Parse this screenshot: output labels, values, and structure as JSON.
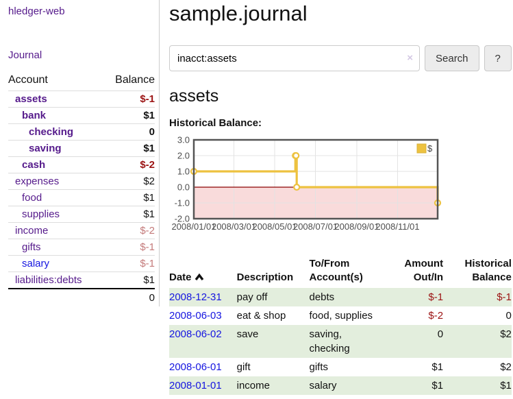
{
  "colors": {
    "link_purple": "#551A8B",
    "link_blue": "#1515e0",
    "negative_strong": "#9b1212",
    "negative_soft": "#c47a7a",
    "row_stripe_green": "#e3eedd",
    "series_gold": "#EDC240"
  },
  "sidebar": {
    "brand": "hledger-web",
    "journal_link": "Journal",
    "accounts": {
      "headers": [
        "Account",
        "Balance"
      ],
      "rows": [
        {
          "account": "assets",
          "level": 1,
          "emph": true,
          "balance": "$-1"
        },
        {
          "account": "bank",
          "level": 2,
          "emph": true,
          "balance": "$1"
        },
        {
          "account": "checking",
          "level": 3,
          "emph": true,
          "balance": "0"
        },
        {
          "account": "saving",
          "level": 3,
          "emph": true,
          "balance": "$1"
        },
        {
          "account": "cash",
          "level": 2,
          "emph": true,
          "balance": "$-2"
        },
        {
          "account": "expenses",
          "level": 1,
          "emph": false,
          "balance": "$2"
        },
        {
          "account": "food",
          "level": 2,
          "emph": false,
          "balance": "$1"
        },
        {
          "account": "supplies",
          "level": 2,
          "emph": false,
          "balance": "$1"
        },
        {
          "account": "income",
          "level": 1,
          "emph": false,
          "balance": "$-2"
        },
        {
          "account": "gifts",
          "level": 2,
          "emph": false,
          "balance": "$-1"
        },
        {
          "account": "salary",
          "level": 2,
          "emph": false,
          "balance": "$-1",
          "unvisited": true
        },
        {
          "account": "liabilities:debts",
          "level": 1,
          "emph": false,
          "balance": "$1"
        }
      ],
      "total": "0"
    }
  },
  "main": {
    "title": "sample.journal",
    "search": {
      "value": "inacct:assets",
      "clear_icon": "×",
      "button_label": "Search",
      "help_label": "?"
    },
    "account_heading": "assets",
    "chart_label": "Historical Balance:"
  },
  "chart_data": {
    "type": "line",
    "step": true,
    "title": "Historical Balance",
    "x_min": "2008-01-01",
    "x_max": "2008-12-31",
    "x_ticks": [
      "2008/01/01",
      "2008/03/01",
      "2008/05/01",
      "2008/07/01",
      "2008/09/01",
      "2008/11/01"
    ],
    "y_ticks": [
      3.0,
      2.0,
      1.0,
      0.0,
      -1.0,
      -2.0
    ],
    "ylim": [
      -2.0,
      3.0
    ],
    "grid": true,
    "legend_position": "top-right",
    "negative_region_color": "#f9dbdb",
    "zero_line_color": "#8b0000",
    "series": [
      {
        "name": "$",
        "color": "#EDC240",
        "points": [
          [
            "2008-01-01",
            1
          ],
          [
            "2008-06-01",
            2
          ],
          [
            "2008-06-02",
            2
          ],
          [
            "2008-06-03",
            0
          ],
          [
            "2008-12-31",
            -1
          ]
        ]
      }
    ]
  },
  "register": {
    "sort": {
      "column": "Date",
      "direction": "asc"
    },
    "headers": [
      {
        "line1": "Date",
        "line2": "",
        "align": "left"
      },
      {
        "line1": "Description",
        "line2": "",
        "align": "left"
      },
      {
        "line1": "To/From",
        "line2": "Account(s)",
        "align": "left"
      },
      {
        "line1": "Amount",
        "line2": "Out/In",
        "align": "right"
      },
      {
        "line1": "Historical",
        "line2": "Balance",
        "align": "right"
      }
    ],
    "rows": [
      {
        "date": "2008-12-31",
        "description": "pay off",
        "accounts": "debts",
        "amount": "$-1",
        "balance": "$-1"
      },
      {
        "date": "2008-06-03",
        "description": "eat & shop",
        "accounts": "food, supplies",
        "amount": "$-2",
        "balance": "0"
      },
      {
        "date": "2008-06-02",
        "description": "save",
        "accounts": "saving, checking",
        "amount": "0",
        "balance": "$2"
      },
      {
        "date": "2008-06-01",
        "description": "gift",
        "accounts": "gifts",
        "amount": "$1",
        "balance": "$2"
      },
      {
        "date": "2008-01-01",
        "description": "income",
        "accounts": "salary",
        "amount": "$1",
        "balance": "$1"
      }
    ]
  }
}
